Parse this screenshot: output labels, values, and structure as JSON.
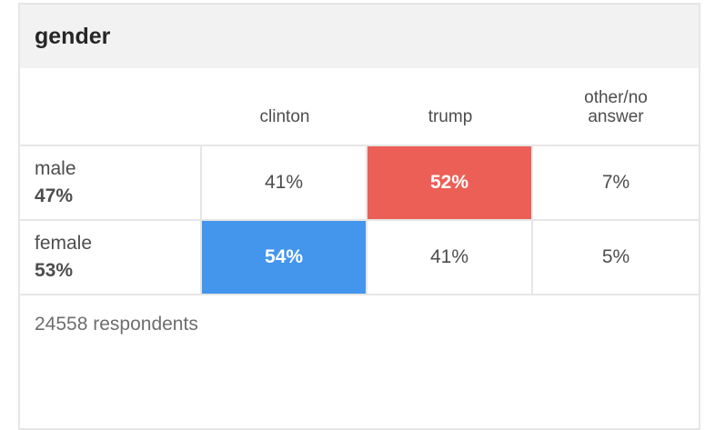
{
  "header": {
    "title": "gender"
  },
  "chart_data": {
    "type": "table",
    "title": "gender",
    "columns": [
      "clinton",
      "trump",
      "other/no answer"
    ],
    "column_headers": [
      "clinton",
      "trump",
      "other/no\nanswer"
    ],
    "rows": [
      {
        "label": "male",
        "share": "47%",
        "values": [
          "41%",
          "52%",
          "7%"
        ],
        "winner_index": 1,
        "winner_color": "#ec5f57"
      },
      {
        "label": "female",
        "share": "53%",
        "values": [
          "54%",
          "41%",
          "5%"
        ],
        "winner_index": 0,
        "winner_color": "#4496ec"
      }
    ],
    "respondents": "24558 respondents"
  }
}
